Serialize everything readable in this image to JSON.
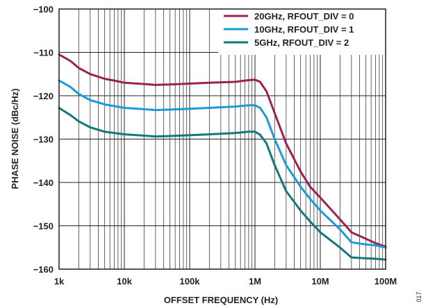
{
  "chart_data": {
    "type": "line",
    "xlabel": "OFFSET FREQUENCY (Hz)",
    "ylabel": "PHASE NOISE (dBc/Hz)",
    "x_scale": "log",
    "xlim": [
      1000,
      100000000
    ],
    "ylim": [
      -160,
      -100
    ],
    "x_ticks": [
      {
        "value": 1000,
        "label": "1k"
      },
      {
        "value": 10000,
        "label": "10k"
      },
      {
        "value": 100000,
        "label": "100k"
      },
      {
        "value": 1000000,
        "label": "1M"
      },
      {
        "value": 10000000,
        "label": "10M"
      },
      {
        "value": 100000000,
        "label": "100M"
      }
    ],
    "y_ticks": [
      {
        "value": -100,
        "label": "−100"
      },
      {
        "value": -110,
        "label": "−110"
      },
      {
        "value": -120,
        "label": "−120"
      },
      {
        "value": -130,
        "label": "−130"
      },
      {
        "value": -140,
        "label": "−140"
      },
      {
        "value": -150,
        "label": "−150"
      },
      {
        "value": -160,
        "label": "−160"
      }
    ],
    "grid": true,
    "legend_position": "top-right",
    "series": [
      {
        "name": "20GHz, RFOUT_DIV = 0",
        "color": "#9b2150",
        "points": [
          [
            1000,
            -110.5
          ],
          [
            1500,
            -112
          ],
          [
            2000,
            -113.6
          ],
          [
            3000,
            -115
          ],
          [
            5000,
            -116.1
          ],
          [
            7000,
            -116.5
          ],
          [
            10000,
            -117
          ],
          [
            20000,
            -117.3
          ],
          [
            30000,
            -117.5
          ],
          [
            50000,
            -117.4
          ],
          [
            100000,
            -117.2
          ],
          [
            200000,
            -117
          ],
          [
            500000,
            -116.8
          ],
          [
            800000,
            -116.4
          ],
          [
            1000000,
            -116.3
          ],
          [
            1200000,
            -116.8
          ],
          [
            1500000,
            -119
          ],
          [
            2000000,
            -124
          ],
          [
            3000000,
            -131
          ],
          [
            5000000,
            -137.5
          ],
          [
            7000000,
            -141
          ],
          [
            10000000,
            -143.5
          ],
          [
            20000000,
            -148.5
          ],
          [
            30000000,
            -151.5
          ],
          [
            50000000,
            -153
          ],
          [
            70000000,
            -154
          ],
          [
            100000000,
            -154.8
          ]
        ]
      },
      {
        "name": "10GHz, RFOUT_DIV = 1",
        "color": "#1a9bd7",
        "points": [
          [
            1000,
            -116.5
          ],
          [
            1500,
            -118
          ],
          [
            2000,
            -119.6
          ],
          [
            3000,
            -121
          ],
          [
            5000,
            -122
          ],
          [
            10000,
            -122.8
          ],
          [
            20000,
            -123.1
          ],
          [
            30000,
            -123.3
          ],
          [
            50000,
            -123.2
          ],
          [
            100000,
            -123
          ],
          [
            200000,
            -122.8
          ],
          [
            500000,
            -122.5
          ],
          [
            800000,
            -122.2
          ],
          [
            1000000,
            -122.2
          ],
          [
            1200000,
            -122.8
          ],
          [
            1500000,
            -125
          ],
          [
            2000000,
            -130
          ],
          [
            3000000,
            -136
          ],
          [
            5000000,
            -141
          ],
          [
            7000000,
            -143.8
          ],
          [
            10000000,
            -146.5
          ],
          [
            20000000,
            -150.8
          ],
          [
            30000000,
            -153.8
          ],
          [
            50000000,
            -154.3
          ],
          [
            70000000,
            -154.5
          ],
          [
            100000000,
            -155
          ]
        ]
      },
      {
        "name": "5GHz, RFOUT_DIV = 2",
        "color": "#107878",
        "points": [
          [
            1000,
            -122.8
          ],
          [
            1500,
            -124.5
          ],
          [
            2000,
            -125.9
          ],
          [
            3000,
            -127.3
          ],
          [
            5000,
            -128.3
          ],
          [
            10000,
            -128.9
          ],
          [
            20000,
            -129.2
          ],
          [
            30000,
            -129.4
          ],
          [
            50000,
            -129.3
          ],
          [
            100000,
            -129.1
          ],
          [
            200000,
            -128.9
          ],
          [
            500000,
            -128.6
          ],
          [
            800000,
            -128.3
          ],
          [
            1000000,
            -128.3
          ],
          [
            1200000,
            -129
          ],
          [
            1500000,
            -131
          ],
          [
            2000000,
            -136
          ],
          [
            3000000,
            -142
          ],
          [
            5000000,
            -146.5
          ],
          [
            7000000,
            -149
          ],
          [
            10000000,
            -151.5
          ],
          [
            20000000,
            -155
          ],
          [
            30000000,
            -157.3
          ],
          [
            50000000,
            -157.5
          ],
          [
            70000000,
            -157.6
          ],
          [
            100000000,
            -157.8
          ]
        ]
      }
    ]
  },
  "figure_number": "017"
}
